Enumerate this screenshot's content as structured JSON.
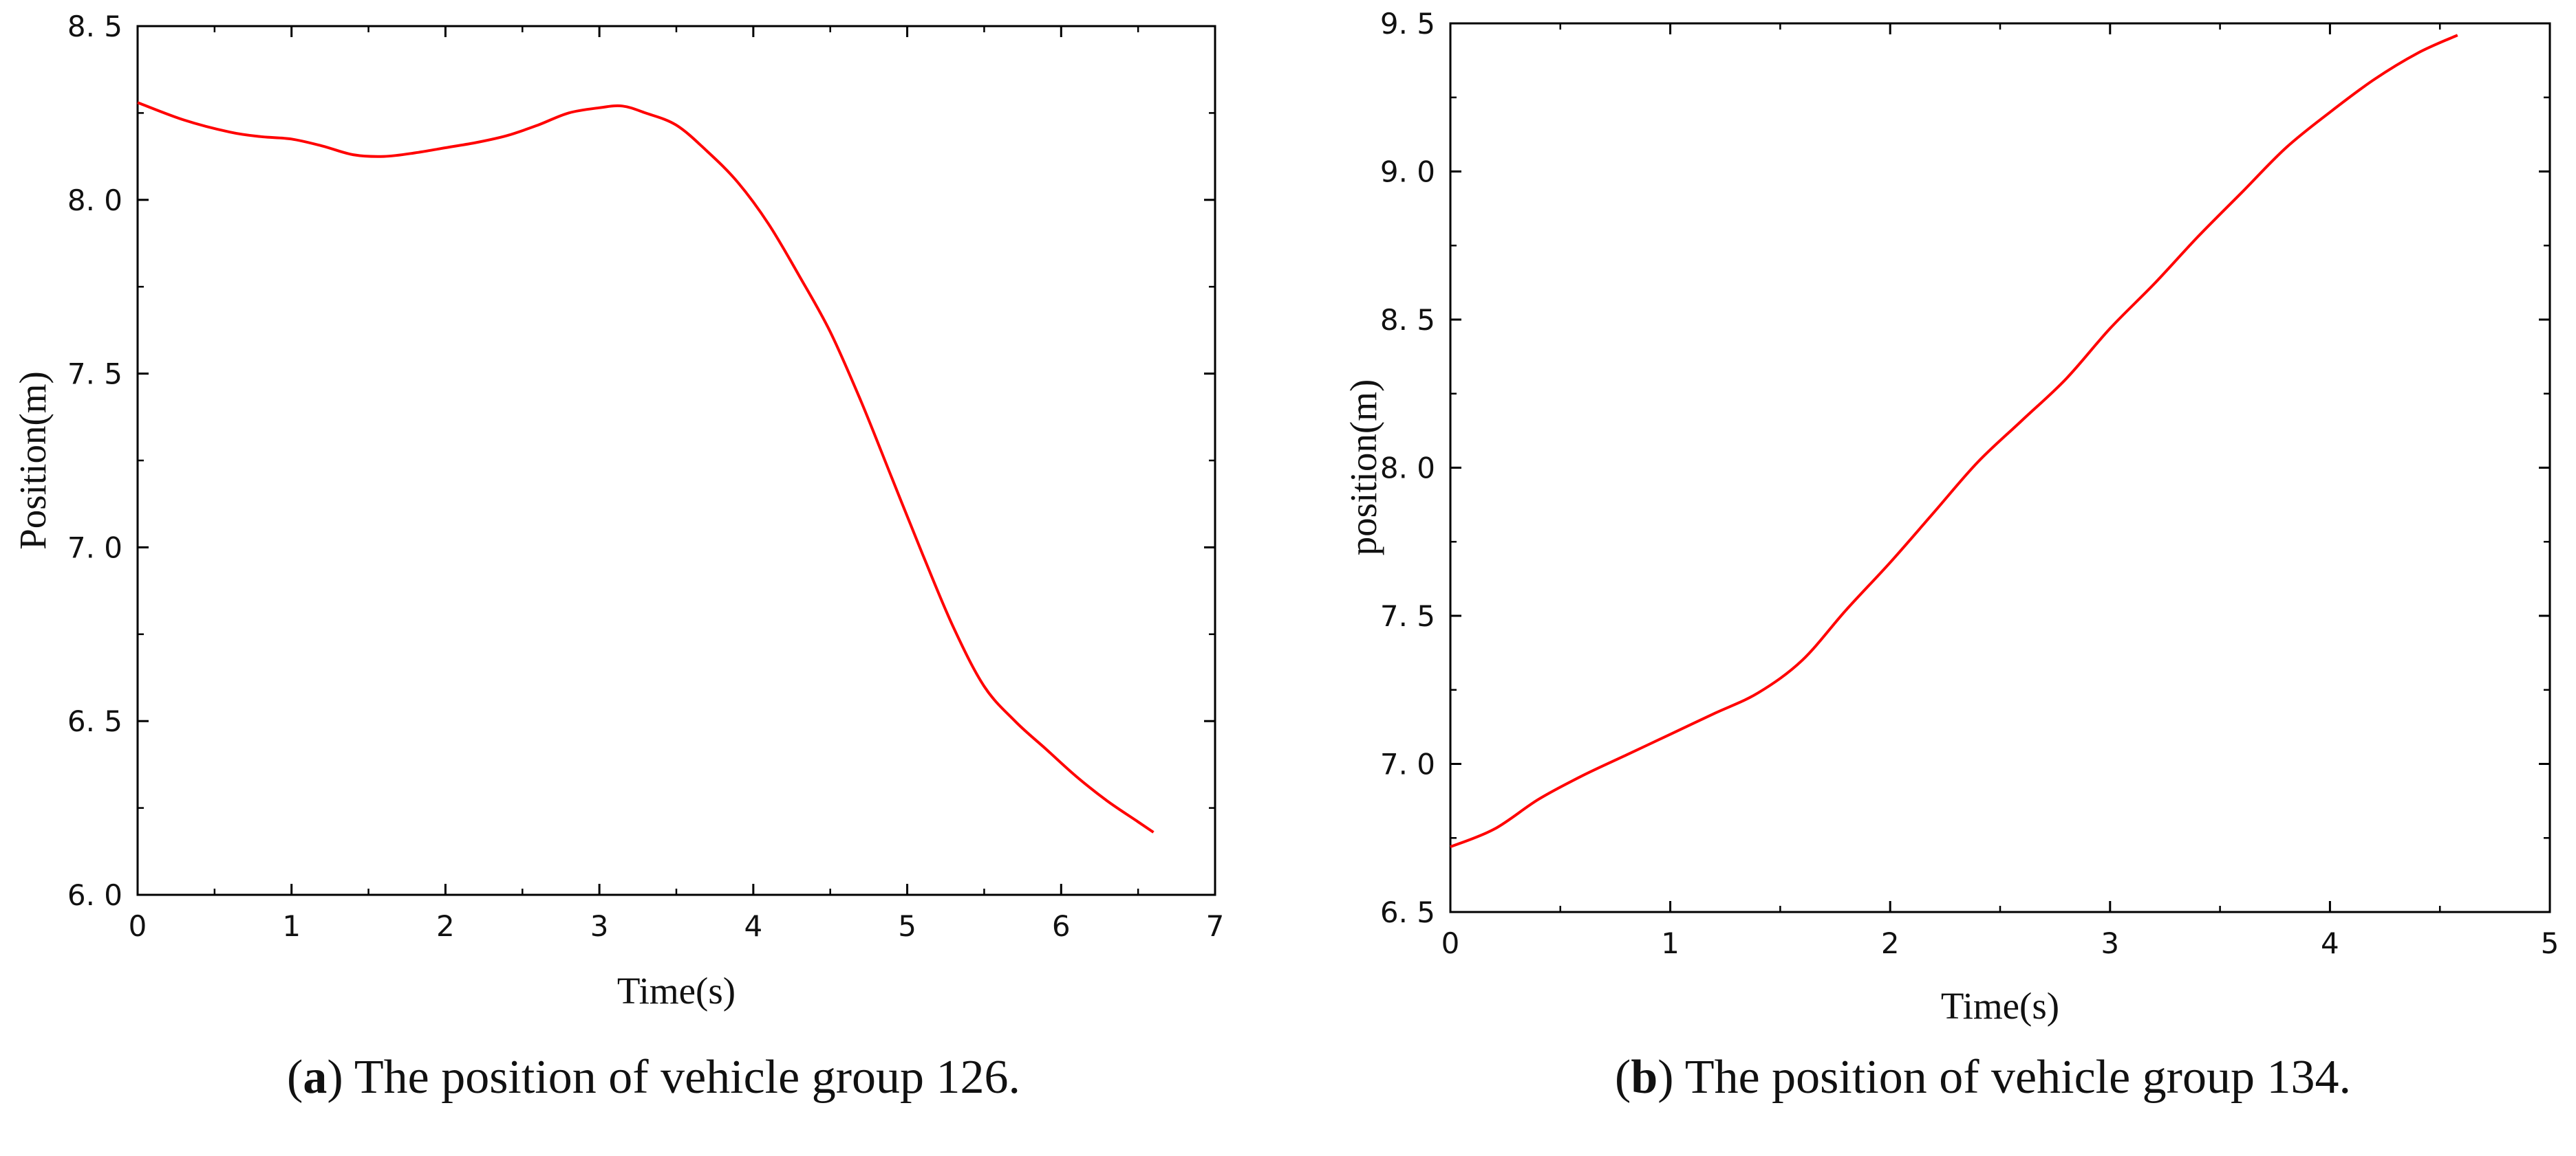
{
  "chart_data": [
    {
      "type": "line",
      "title": "",
      "xlabel": "Time(s)",
      "ylabel": "Position(m)",
      "xlim": [
        0,
        7
      ],
      "ylim": [
        6.0,
        8.5
      ],
      "x_ticks": [
        "0",
        "1",
        "2",
        "3",
        "4",
        "5",
        "6",
        "7"
      ],
      "y_ticks": [
        "6. 0",
        "6. 5",
        "7. 0",
        "7. 5",
        "8. 0",
        "8. 5"
      ],
      "grid": false,
      "series_color": "#ff0000",
      "caption": {
        "letter": "a",
        "open": "(",
        "close": ")",
        "text": " The position of vehicle group 126."
      },
      "series": [
        {
          "x": [
            0,
            0.3,
            0.6,
            0.8,
            1.0,
            1.2,
            1.4,
            1.6,
            1.8,
            2.0,
            2.2,
            2.4,
            2.6,
            2.8,
            3.0,
            3.15,
            3.3,
            3.5,
            3.7,
            3.9,
            4.1,
            4.3,
            4.5,
            4.7,
            4.9,
            5.1,
            5.3,
            5.5,
            5.7,
            5.9,
            6.1,
            6.3,
            6.5,
            6.6
          ],
          "y": [
            8.28,
            8.23,
            8.195,
            8.182,
            8.175,
            8.155,
            8.13,
            8.125,
            8.135,
            8.15,
            8.165,
            8.185,
            8.215,
            8.25,
            8.265,
            8.27,
            8.25,
            8.215,
            8.14,
            8.05,
            7.93,
            7.78,
            7.62,
            7.42,
            7.2,
            6.98,
            6.77,
            6.6,
            6.5,
            6.42,
            6.34,
            6.27,
            6.21,
            6.18
          ]
        }
      ]
    },
    {
      "type": "line",
      "title": "",
      "xlabel": "Time(s)",
      "ylabel": "position(m)",
      "xlim": [
        0,
        5
      ],
      "ylim": [
        6.5,
        9.5
      ],
      "x_ticks": [
        "0",
        "1",
        "2",
        "3",
        "4",
        "5"
      ],
      "y_ticks": [
        "6. 5",
        "7. 0",
        "7. 5",
        "8. 0",
        "8. 5",
        "9. 0",
        "9. 5"
      ],
      "grid": false,
      "series_color": "#ff0000",
      "caption": {
        "letter": "b",
        "open": "(",
        "close": ")",
        "text": " The position of vehicle group 134."
      },
      "series": [
        {
          "x": [
            0,
            0.2,
            0.4,
            0.6,
            0.8,
            1.0,
            1.2,
            1.4,
            1.6,
            1.8,
            2.0,
            2.2,
            2.4,
            2.6,
            2.8,
            3.0,
            3.2,
            3.4,
            3.6,
            3.8,
            4.0,
            4.2,
            4.4,
            4.58
          ],
          "y": [
            6.72,
            6.78,
            6.88,
            6.96,
            7.03,
            7.1,
            7.17,
            7.24,
            7.35,
            7.52,
            7.68,
            7.85,
            8.02,
            8.16,
            8.3,
            8.47,
            8.62,
            8.78,
            8.93,
            9.08,
            9.2,
            9.31,
            9.4,
            9.46
          ]
        }
      ]
    }
  ]
}
